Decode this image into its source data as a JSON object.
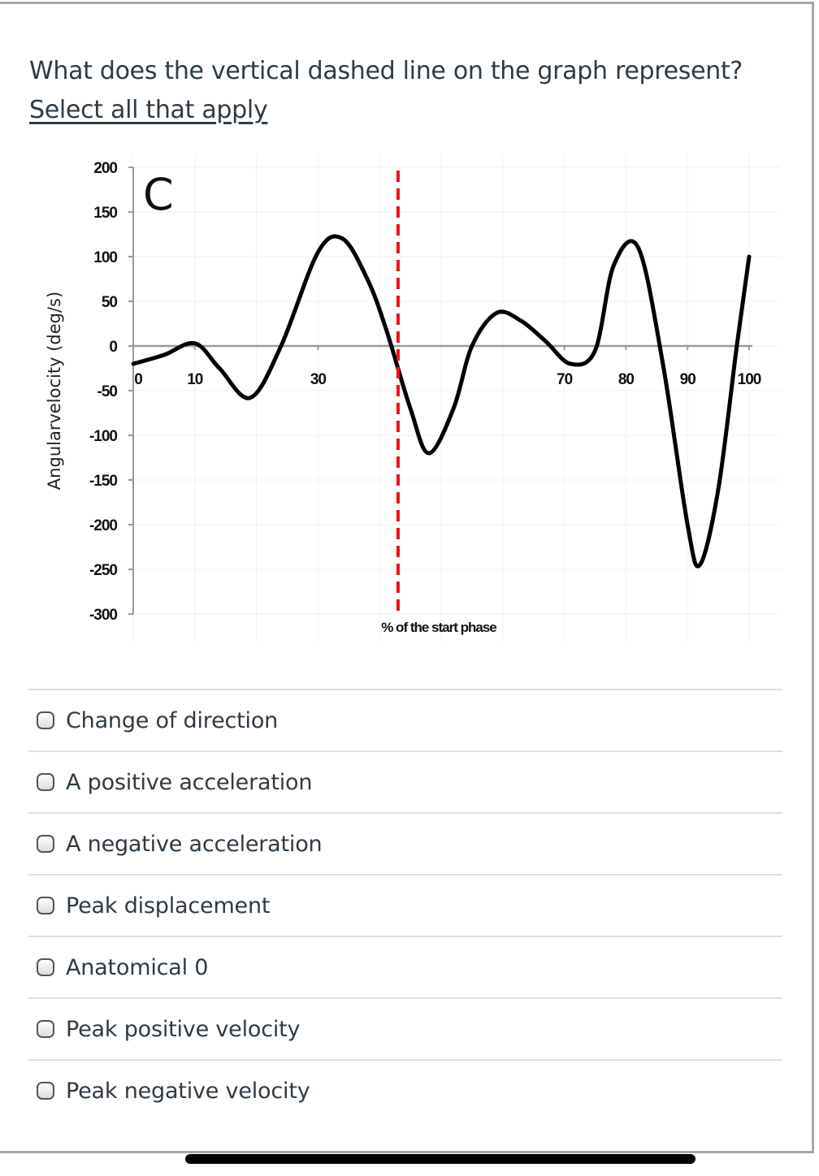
{
  "question": {
    "text": "What does the vertical dashed line on the graph represent? ",
    "link_text": "Select all that apply"
  },
  "answers": [
    {
      "label": "Change of direction",
      "checked": false
    },
    {
      "label": "A positive acceleration",
      "checked": false
    },
    {
      "label": "A negative acceleration",
      "checked": false
    },
    {
      "label": "Peak displacement",
      "checked": false
    },
    {
      "label": "Anatomical 0",
      "checked": false
    },
    {
      "label": "Peak positive velocity",
      "checked": false
    },
    {
      "label": "Peak negative velocity",
      "checked": false
    }
  ],
  "colors": {
    "text": "#2d3b45",
    "dashed_line": "#e8141a",
    "curve": "#000000",
    "border": "#a8a8a8",
    "divider": "#dedede"
  },
  "chart_data": {
    "type": "line",
    "panel_label": "C",
    "title": "",
    "xlabel": "% of the start phase",
    "ylabel": "Angularvelocity (deg/s)",
    "ylim": [
      -300,
      200
    ],
    "xlim": [
      0,
      100
    ],
    "y_ticks": [
      200,
      150,
      100,
      50,
      0,
      -50,
      -100,
      -150,
      -200,
      -250,
      -300
    ],
    "x_tick_labels": [
      "0",
      "10",
      "30",
      "70",
      "80",
      "90",
      "100"
    ],
    "x_tick_positions": [
      0,
      10,
      30,
      70,
      80,
      90,
      100
    ],
    "grid": true,
    "series": [
      {
        "name": "Angular velocity",
        "x": [
          0,
          5,
          10,
          14,
          19,
          24,
          30,
          34,
          38,
          41,
          45,
          48,
          52,
          55,
          59,
          63,
          67,
          71,
          75,
          78,
          82,
          86,
          90,
          92,
          95,
          98,
          100
        ],
        "y": [
          -20,
          -10,
          3,
          -25,
          -58,
          0,
          105,
          120,
          75,
          20,
          -70,
          -120,
          -70,
          0,
          37,
          28,
          5,
          -20,
          -5,
          90,
          110,
          -20,
          -200,
          -245,
          -160,
          0,
          100
        ]
      }
    ],
    "annotations": [
      {
        "type": "vline",
        "x": 43,
        "style": "dashed",
        "color": "#e8141a",
        "description": "vertical dashed line at zero crossing"
      }
    ]
  }
}
